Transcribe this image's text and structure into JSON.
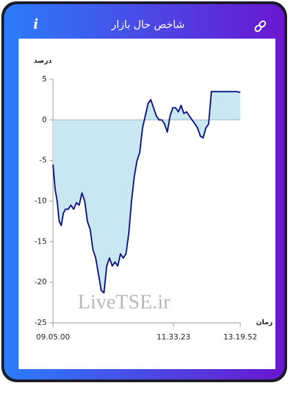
{
  "header": {
    "title": "شاخص حال بازار",
    "info_icon": "i"
  },
  "chart_data": {
    "type": "area",
    "y_label": "درصد",
    "x_label": "زمان",
    "watermark": "LiveTSE.ir",
    "color": "#0d1680",
    "fill_color": "#c9e7f2",
    "x": [
      0,
      3,
      6,
      9,
      12,
      15,
      18,
      22,
      26,
      30,
      34,
      38,
      42,
      46,
      50,
      54,
      58,
      62,
      66,
      70,
      74,
      78,
      82,
      86,
      90,
      94,
      98,
      102,
      106,
      110,
      114,
      118,
      122,
      126,
      130,
      134,
      138,
      142,
      146,
      150,
      154,
      158,
      162,
      166,
      170,
      174,
      178,
      182,
      186,
      190,
      194,
      198,
      202,
      206,
      210,
      214,
      218,
      222,
      226,
      230,
      234,
      240,
      250,
      260,
      266,
      272
    ],
    "values": [
      -5.5,
      -8.5,
      -10,
      -12.5,
      -13,
      -11.5,
      -11,
      -11,
      -10.5,
      -11,
      -10.2,
      -10.5,
      -9,
      -10,
      -12.5,
      -13.5,
      -16,
      -17,
      -19,
      -21,
      -21.3,
      -18,
      -17,
      -18,
      -17.5,
      -18,
      -16.5,
      -17,
      -16.5,
      -14,
      -10,
      -7,
      -5,
      -4,
      -1,
      0.5,
      2,
      2.5,
      1.5,
      0.5,
      0,
      0,
      -0.5,
      -1.5,
      0.5,
      1.5,
      1.5,
      1,
      1.8,
      0.8,
      1,
      0.5,
      0,
      -0.5,
      -1,
      -2,
      -2.2,
      -1,
      -0.5,
      3.5,
      3.5,
      3.5,
      3.5,
      3.5,
      3.5,
      3.4
    ],
    "xlim": [
      0,
      272
    ],
    "xticks": [
      {
        "value": 0,
        "label": "09.05.00"
      },
      {
        "value": 175,
        "label": "11.33.23"
      },
      {
        "value": 272,
        "label": "13.19.52"
      }
    ],
    "ylim": [
      -25,
      5
    ],
    "yticks": [
      -25,
      -20,
      -15,
      -10,
      -5,
      0,
      5
    ]
  }
}
